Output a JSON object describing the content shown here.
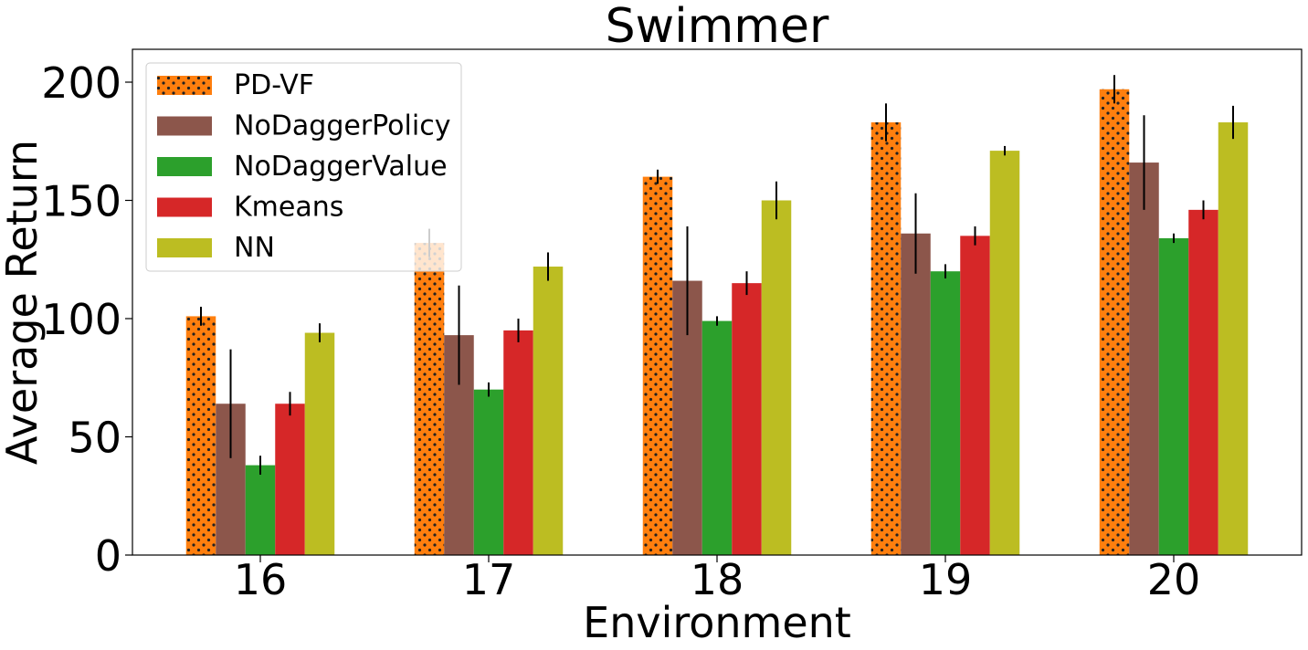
{
  "chart_data": {
    "type": "bar",
    "title": "Swimmer",
    "xlabel": "Environment",
    "ylabel": "Average Return",
    "categories": [
      "16",
      "17",
      "18",
      "19",
      "20"
    ],
    "ylim": [
      0,
      214
    ],
    "yticks": [
      0,
      50,
      100,
      150,
      200
    ],
    "grid": false,
    "legend_position": "upper-left",
    "series": [
      {
        "name": "PD-VF",
        "color": "#ff7f0e",
        "pattern": "dots",
        "values": [
          101,
          132,
          160,
          183,
          197
        ],
        "errors": [
          4,
          6,
          3,
          8,
          6
        ]
      },
      {
        "name": "NoDaggerPolicy",
        "color": "#8c564b",
        "pattern": "none",
        "values": [
          64,
          93,
          116,
          136,
          166
        ],
        "errors": [
          23,
          21,
          23,
          17,
          20
        ]
      },
      {
        "name": "NoDaggerValue",
        "color": "#2ca02c",
        "pattern": "none",
        "values": [
          38,
          70,
          99,
          120,
          134
        ],
        "errors": [
          4,
          3,
          2,
          3,
          2
        ]
      },
      {
        "name": "Kmeans",
        "color": "#d62728",
        "pattern": "none",
        "values": [
          64,
          95,
          115,
          135,
          146
        ],
        "errors": [
          5,
          5,
          5,
          4,
          4
        ]
      },
      {
        "name": "NN",
        "color": "#bcbd22",
        "pattern": "none",
        "values": [
          94,
          122,
          150,
          171,
          183
        ],
        "errors": [
          4,
          6,
          8,
          2,
          7
        ]
      }
    ]
  }
}
